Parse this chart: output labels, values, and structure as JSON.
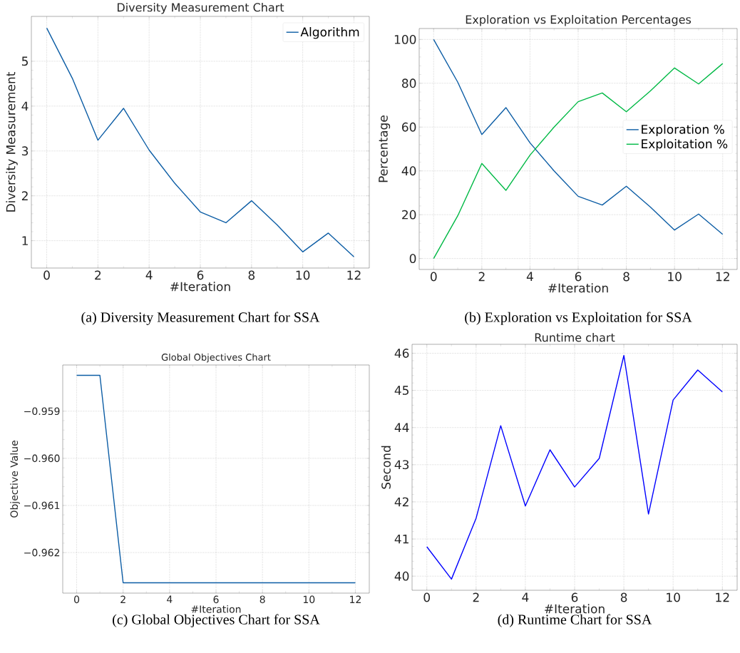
{
  "chart_data": [
    {
      "type": "line",
      "title": "Diversity Measurement Chart",
      "xlabel": "#Iteration",
      "ylabel": "Diversity Measurement",
      "x": [
        0,
        1,
        2,
        3,
        4,
        5,
        6,
        7,
        8,
        9,
        10,
        11,
        12
      ],
      "xlim": [
        -0.6,
        12.6
      ],
      "xticks": [
        0,
        2,
        4,
        6,
        8,
        10,
        12
      ],
      "ylim": [
        0.39,
        6.0
      ],
      "yticks": [
        1,
        2,
        3,
        4,
        5
      ],
      "grid": true,
      "legend": "top right",
      "series": [
        {
          "name": "Algorithm",
          "color": "#0c5da5",
          "values": [
            5.74,
            4.62,
            3.24,
            3.95,
            3.02,
            2.28,
            1.64,
            1.4,
            1.89,
            1.35,
            0.75,
            1.17,
            0.64
          ]
        }
      ],
      "annotations": [
        "(a) Diversity Measurement Chart for SSA"
      ]
    },
    {
      "type": "line",
      "title": "Exploration vs Exploitation Percentages",
      "xlabel": "#Iteration",
      "ylabel": "Percentage",
      "x": [
        0,
        1,
        2,
        3,
        4,
        5,
        6,
        7,
        8,
        9,
        10,
        11,
        12
      ],
      "xlim": [
        -0.6,
        12.6
      ],
      "xticks": [
        0,
        2,
        4,
        6,
        8,
        10,
        12
      ],
      "ylim": [
        -5,
        105
      ],
      "yticks": [
        0,
        20,
        40,
        60,
        80,
        100
      ],
      "grid": true,
      "legend": "right",
      "series": [
        {
          "name": "Exploration %",
          "color": "#0c5da5",
          "values": [
            100,
            80.5,
            56.6,
            68.9,
            52.8,
            40,
            28.4,
            24.4,
            33,
            23.5,
            13,
            20.3,
            11
          ]
        },
        {
          "name": "Exploitation %",
          "color": "#00b945",
          "values": [
            0,
            19.5,
            43.4,
            31.1,
            47.2,
            60,
            71.6,
            75.6,
            67,
            76.5,
            87,
            79.7,
            89
          ]
        }
      ],
      "annotations": [
        "(b) Exploration vs Exploitation for SSA"
      ]
    },
    {
      "type": "line",
      "title": "Global Objectives Chart",
      "xlabel": "#Iteration",
      "ylabel": "Objective Value",
      "x": [
        0,
        1,
        2,
        3,
        4,
        5,
        6,
        7,
        8,
        9,
        10,
        11,
        12
      ],
      "xlim": [
        -0.6,
        12.6
      ],
      "xticks": [
        0,
        2,
        4,
        6,
        8,
        10,
        12
      ],
      "ylim": [
        -0.96286,
        -0.95802
      ],
      "yticks": [
        {
          "value": -0.962,
          "label": "−0.962"
        },
        {
          "value": -0.961,
          "label": "−0.961"
        },
        {
          "value": -0.96,
          "label": "−0.960"
        },
        {
          "value": -0.959,
          "label": "−0.959"
        }
      ],
      "grid": true,
      "series": [
        {
          "color": "#0c5da5",
          "values": [
            -0.95824,
            -0.95824,
            -0.96264,
            -0.96264,
            -0.96264,
            -0.96264,
            -0.96264,
            -0.96264,
            -0.96264,
            -0.96264,
            -0.96264,
            -0.96264,
            -0.96264
          ]
        }
      ],
      "annotations": [
        "(c) Global Objectives Chart for SSA"
      ]
    },
    {
      "type": "line",
      "title": "Runtime chart",
      "xlabel": "#Iteration",
      "ylabel": "Second",
      "x": [
        0,
        1,
        2,
        3,
        4,
        5,
        6,
        7,
        8,
        9,
        10,
        11,
        12
      ],
      "xlim": [
        -0.6,
        12.6
      ],
      "xticks": [
        0,
        2,
        4,
        6,
        8,
        10,
        12
      ],
      "ylim": [
        39.62,
        46.24
      ],
      "yticks": [
        40,
        41,
        42,
        43,
        44,
        45,
        46
      ],
      "grid": true,
      "series": [
        {
          "color": "#0000ff",
          "values": [
            40.79,
            39.92,
            41.56,
            44.05,
            41.89,
            43.4,
            42.4,
            43.17,
            45.94,
            41.67,
            44.74,
            45.55,
            44.96
          ]
        }
      ],
      "annotations": [
        "(d) Runtime Chart for SSA"
      ]
    }
  ]
}
